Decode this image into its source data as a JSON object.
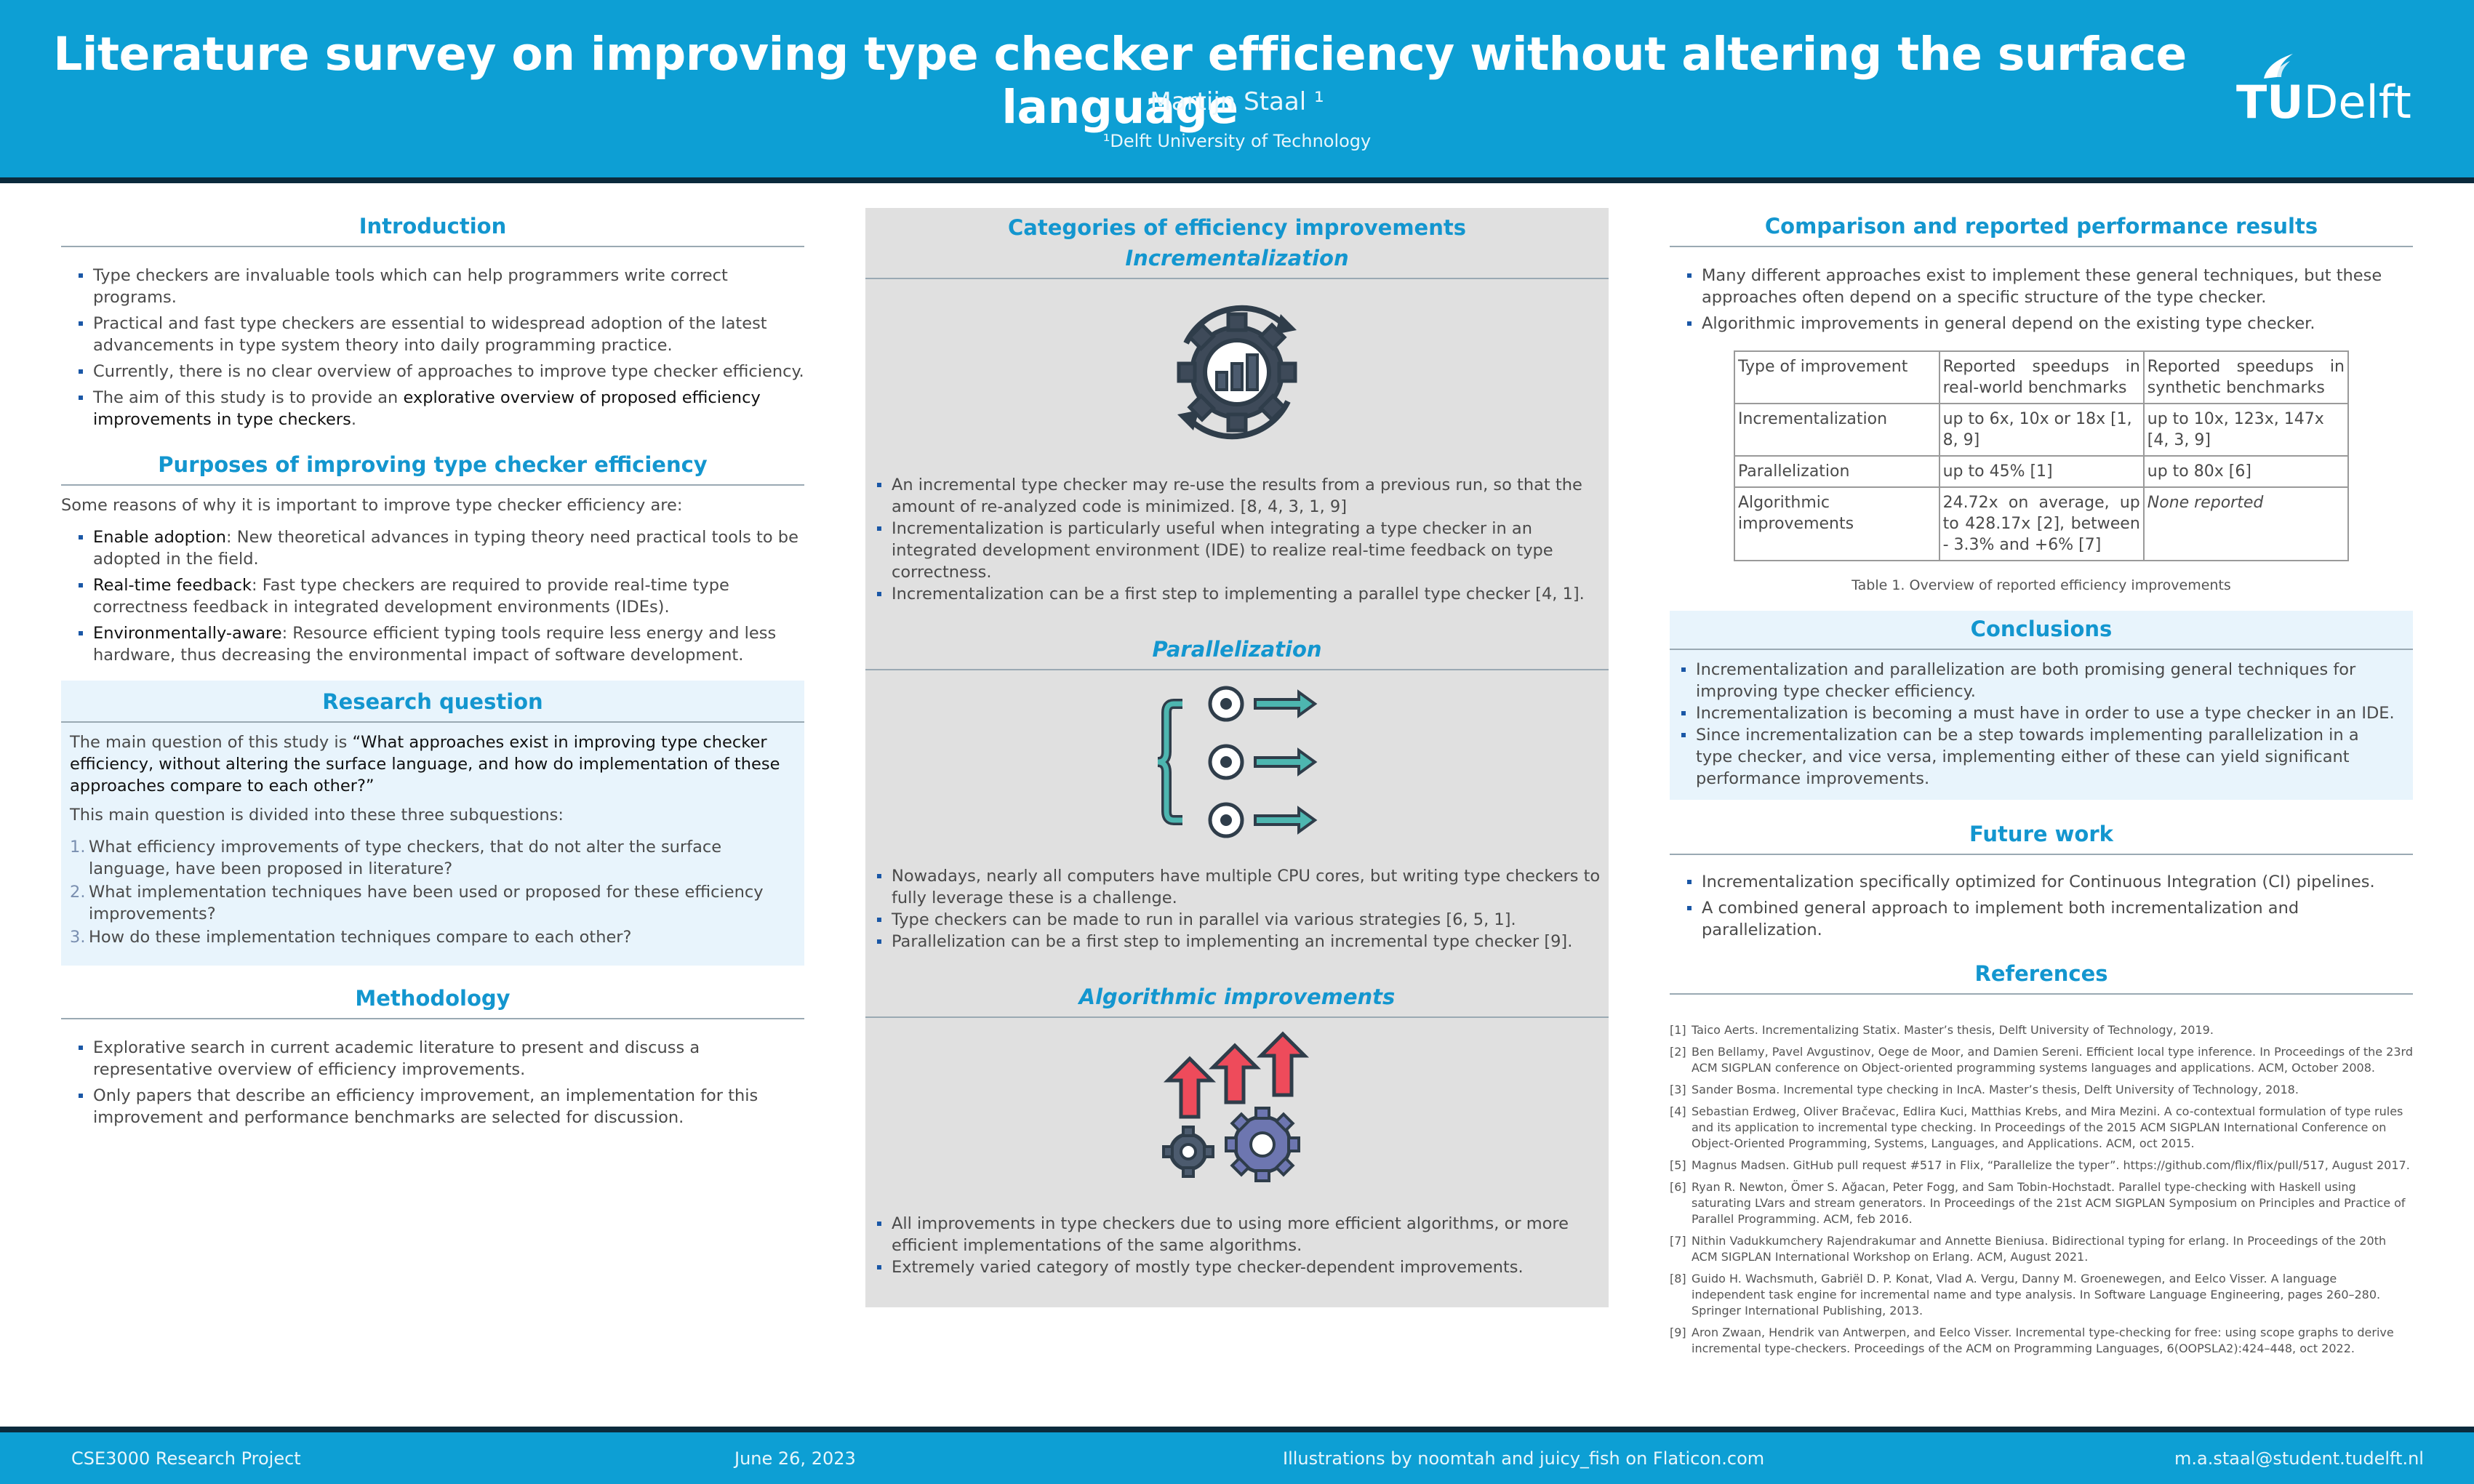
{
  "header": {
    "title": "Literature survey on improving type checker efficiency without altering the surface language",
    "author": "Martijn Staal ¹",
    "affiliation": "¹Delft University of Technology",
    "logo_text_bold": "TU",
    "logo_text": "Delft"
  },
  "introduction": {
    "title": "Introduction",
    "items": [
      "Type checkers are invaluable tools which can help programmers write correct programs.",
      "Practical and fast type checkers are essential to widespread adoption of the latest advancements in type system theory into daily programming practice.",
      "Currently, there is no clear overview of approaches to improve type checker efficiency."
    ],
    "aim_prefix": "The aim of this study is to provide an ",
    "aim_highlight": "explorative overview of proposed efficiency improvements in type checkers",
    "aim_suffix": "."
  },
  "purposes": {
    "title": "Purposes of improving type checker efficiency",
    "intro": "Some reasons of why it is important to improve type checker efficiency are:",
    "items": [
      {
        "key": "Enable adoption",
        "text": ": New theoretical advances in typing theory need practical tools to be adopted in the field."
      },
      {
        "key": "Real-time feedback",
        "text": ": Fast type checkers are required to provide real-time type correctness feedback in integrated development environments (IDEs)."
      },
      {
        "key": "Environmentally-aware",
        "text": ": Resource efficient typing tools require less energy and less hardware, thus decreasing the environmental impact of software development."
      }
    ]
  },
  "research_question": {
    "title": "Research question",
    "lead": "The main question of this study is ",
    "question": "“What approaches exist in improving type checker efficiency, without altering the surface language, and how do implementation of these approaches compare to each other?”",
    "divided": "This main question is divided into these three subquestions:",
    "subquestions": [
      {
        "n": "1.",
        "text": "What efficiency improvements of type checkers, that do not alter the surface language, have been proposed in literature?"
      },
      {
        "n": "2.",
        "text": "What implementation techniques have been used or proposed for these efficiency improvements?"
      },
      {
        "n": "3.",
        "text": "How do these implementation techniques compare to each other?"
      }
    ]
  },
  "methodology": {
    "title": "Methodology",
    "items": [
      "Explorative search in current academic literature to present and discuss a representative overview of efficiency improvements.",
      "Only papers that describe an efficiency improvement, an implementation for this improvement and performance benchmarks are selected for discussion."
    ]
  },
  "categories": {
    "title": "Categories of efficiency improvements",
    "incrementalization": {
      "title": "Incrementalization",
      "icon": "gear-refresh-chart-icon",
      "items": [
        "An incremental type checker may re-use the results from a previous run, so that the amount of re-analyzed code is minimized. [8, 4, 3, 1, 9]",
        "Incrementalization is particularly useful when integrating a type checker in an integrated development environment (IDE) to realize real-time feedback on type correctness.",
        "Incrementalization can be a first step to implementing a parallel type checker [4, 1]."
      ]
    },
    "parallelization": {
      "title": "Parallelization",
      "icon": "parallel-gears-arrows-icon",
      "items": [
        "Nowadays, nearly all computers have multiple CPU cores, but writing type checkers to fully leverage these is a challenge.",
        "Type checkers can be made to run in parallel via various strategies [6, 5, 1].",
        "Parallelization can be a first step to implementing an incremental type checker [9]."
      ]
    },
    "algorithmic": {
      "title": "Algorithmic improvements",
      "icon": "gears-up-arrows-icon",
      "items": [
        "All improvements in type checkers due to using more efficient algorithms, or more efficient implementations of the same algorithms.",
        "Extremely varied category of mostly type checker-dependent improvements."
      ]
    }
  },
  "comparison": {
    "title": "Comparison and reported performance results",
    "items": [
      "Many different approaches exist to implement these general techniques, but these approaches often depend on a specific structure of the type checker.",
      "Algorithmic improvements in general depend on the existing type checker."
    ],
    "table": {
      "headers": [
        "Type of improvement",
        "Reported speedups in real-world benchmarks",
        "Reported speedups in synthetic benchmarks"
      ],
      "rows": [
        [
          "Incrementalization",
          "up to 6x, 10x or 18x [1, 8, 9]",
          "up to 10x, 123x, 147x [4, 3, 9]"
        ],
        [
          "Parallelization",
          "up to 45% [1]",
          "up to 80x [6]"
        ],
        [
          "Algorithmic improvements",
          "24.72x on average, up to 428.17x [2], between - 3.3% and +6% [7]",
          "None reported"
        ]
      ],
      "caption": "Table 1. Overview of reported efficiency improvements"
    }
  },
  "conclusions": {
    "title": "Conclusions",
    "items": [
      "Incrementalization and parallelization are both promising general techniques for improving type checker efficiency.",
      "Incrementalization is becoming a must have in order to use a type checker in an IDE.",
      "Since incrementalization can be a step towards implementing parallelization in a type checker, and vice versa, implementing either of these can yield significant performance improvements."
    ]
  },
  "future_work": {
    "title": "Future work",
    "items": [
      "Incrementalization specifically optimized for Continuous Integration (CI) pipelines.",
      "A combined general approach to implement both incrementalization and parallelization."
    ]
  },
  "references": {
    "title": "References",
    "items": [
      {
        "n": "[1]",
        "text": "Taico Aerts. Incrementalizing Statix. Master’s thesis, Delft University of Technology, 2019."
      },
      {
        "n": "[2]",
        "text": "Ben Bellamy, Pavel Avgustinov, Oege de Moor, and Damien Sereni. Efficient local type inference. In Proceedings of the 23rd ACM SIGPLAN conference on Object-oriented programming systems languages and applications. ACM, October 2008."
      },
      {
        "n": "[3]",
        "text": "Sander Bosma. Incremental type checking in IncA. Master’s thesis, Delft University of Technology, 2018."
      },
      {
        "n": "[4]",
        "text": "Sebastian Erdweg, Oliver Bračevac, Edlira Kuci, Matthias Krebs, and Mira Mezini. A co-contextual formulation of type rules and its application to incremental type checking. In Proceedings of the 2015 ACM SIGPLAN International Conference on Object-Oriented Programming, Systems, Languages, and Applications. ACM, oct 2015."
      },
      {
        "n": "[5]",
        "text": "Magnus Madsen. GitHub pull request #517 in Flix, “Parallelize the typer”. https://github.com/flix/flix/pull/517, August 2017."
      },
      {
        "n": "[6]",
        "text": "Ryan R. Newton, Ömer S. Ağacan, Peter Fogg, and Sam Tobin-Hochstadt. Parallel type-checking with Haskell using saturating LVars and stream generators. In Proceedings of the 21st ACM SIGPLAN Symposium on Principles and Practice of Parallel Programming. ACM, feb 2016."
      },
      {
        "n": "[7]",
        "text": "Nithin Vadukkumchery Rajendrakumar and Annette Bieniusa. Bidirectional typing for erlang. In Proceedings of the 20th ACM SIGPLAN International Workshop on Erlang. ACM, August 2021."
      },
      {
        "n": "[8]",
        "text": "Guido H. Wachsmuth, Gabriël D. P. Konat, Vlad A. Vergu, Danny M. Groenewegen, and Eelco Visser. A language independent task engine for incremental name and type analysis. In Software Language Engineering, pages 260–280. Springer International Publishing, 2013."
      },
      {
        "n": "[9]",
        "text": "Aron Zwaan, Hendrik van Antwerpen, and Eelco Visser. Incremental type-checking for free: using scope graphs to derive incremental type-checkers. Proceedings of the ACM on Programming Languages, 6(OOPSLA2):424–448, oct 2022."
      }
    ]
  },
  "footer": {
    "left": "CSE3000 Research Project",
    "date": "June 26, 2023",
    "credits": "Illustrations by noomtah and juicy_fish on Flaticon.com",
    "email": "m.a.staal@student.tudelft.nl"
  },
  "colors": {
    "brand": "#0d9fd4",
    "heading": "#1396cf",
    "dark_band": "#0b2a3c",
    "panel_grey": "#e0e0e0",
    "panel_blue": "#e8f4fc"
  }
}
